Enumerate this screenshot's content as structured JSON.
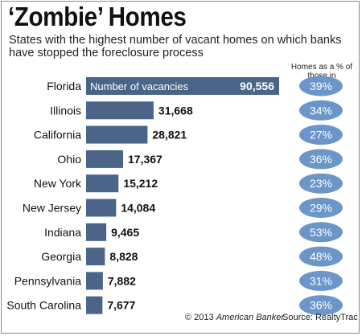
{
  "chart_data": {
    "type": "bar",
    "title": "‘Zombie’ Homes",
    "subtitle": "States with the highest number of vacant homes on which banks have stopped the foreclosure process",
    "bar_label": "Number of vacancies",
    "categories": [
      "Florida",
      "Illinois",
      "California",
      "Ohio",
      "New York",
      "New Jersey",
      "Indiana",
      "Georgia",
      "Pennsylvania",
      "South Carolina"
    ],
    "values": [
      90556,
      31668,
      28821,
      17367,
      15212,
      14084,
      9465,
      8828,
      7882,
      7677
    ],
    "value_labels": [
      "90,556",
      "31,668",
      "28,821",
      "17,367",
      "15,212",
      "14,084",
      "9,465",
      "8,828",
      "7,882",
      "7,677"
    ],
    "percent_header": "Homes as a % of those in foreclosure",
    "percent_labels": [
      "39%",
      "34%",
      "27%",
      "36%",
      "23%",
      "29%",
      "53%",
      "48%",
      "31%",
      "36%"
    ],
    "colors": {
      "bar": "#4a6587",
      "oval": "#6b96c9",
      "bar_label_text": "#ffffff"
    }
  },
  "footer": {
    "copyright": "© 2013 ",
    "copyright_brand": "American Banker",
    "source": "Source: RealtyTrac"
  }
}
